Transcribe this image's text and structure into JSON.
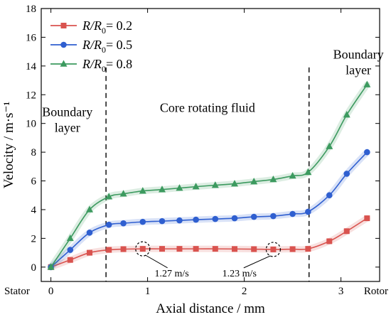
{
  "chart_data": {
    "type": "line",
    "xlabel": "Axial distance / mm",
    "ylabel": "Velocity / m·s⁻¹",
    "xlim": [
      -0.1,
      3.4
    ],
    "ylim": [
      -1,
      18
    ],
    "xticks": [
      0,
      1,
      2,
      3
    ],
    "yticks": [
      0,
      2,
      4,
      6,
      8,
      10,
      12,
      14,
      16,
      18
    ],
    "x_end_labels": {
      "left": "Stator",
      "right": "Rotor"
    },
    "legend_position": "top-left",
    "series": [
      {
        "name_parts": [
          "R/R",
          "0",
          "= 0.2"
        ],
        "color": "#d9534f",
        "marker": "square",
        "x": [
          0,
          0.2,
          0.4,
          0.6,
          0.75,
          0.95,
          1.15,
          1.33,
          1.5,
          1.7,
          1.9,
          2.1,
          2.3,
          2.5,
          2.66,
          2.88,
          3.06,
          3.27
        ],
        "y": [
          0,
          0.5,
          1.0,
          1.2,
          1.25,
          1.27,
          1.27,
          1.27,
          1.27,
          1.27,
          1.26,
          1.25,
          1.23,
          1.25,
          1.27,
          1.8,
          2.5,
          3.4
        ]
      },
      {
        "name_parts": [
          "R/R",
          "0",
          "= 0.5"
        ],
        "color": "#2f5fd0",
        "marker": "circle",
        "x": [
          0,
          0.2,
          0.4,
          0.6,
          0.75,
          0.95,
          1.15,
          1.33,
          1.5,
          1.7,
          1.9,
          2.1,
          2.3,
          2.5,
          2.66,
          2.88,
          3.06,
          3.27
        ],
        "y": [
          0,
          1.2,
          2.4,
          2.95,
          3.05,
          3.15,
          3.2,
          3.25,
          3.3,
          3.35,
          3.4,
          3.5,
          3.55,
          3.7,
          3.85,
          5.0,
          6.5,
          8.0
        ]
      },
      {
        "name_parts": [
          "R/R",
          "0",
          "= 0.8"
        ],
        "color": "#3c9a5f",
        "marker": "triangle",
        "x": [
          0,
          0.2,
          0.4,
          0.6,
          0.75,
          0.95,
          1.15,
          1.33,
          1.5,
          1.7,
          1.9,
          2.1,
          2.3,
          2.5,
          2.66,
          2.88,
          3.06,
          3.27
        ],
        "y": [
          0,
          2.0,
          4.0,
          4.9,
          5.1,
          5.3,
          5.4,
          5.5,
          5.6,
          5.7,
          5.8,
          5.95,
          6.1,
          6.35,
          6.6,
          8.4,
          10.6,
          12.7
        ]
      }
    ],
    "region_boundaries_x": [
      0.57,
      2.67
    ],
    "region_labels": [
      {
        "text": [
          "Boundary",
          "layer"
        ],
        "x": 0.17,
        "y": 10.5
      },
      {
        "text": [
          "Core rotating fluid"
        ],
        "x": 1.62,
        "y": 10.8
      },
      {
        "text": [
          "Boundary",
          "layer"
        ],
        "x": 3.18,
        "y": 14.5
      }
    ],
    "value_annotations": [
      {
        "text": "1.27 m/s",
        "x": 0.95,
        "y": 1.27,
        "label_x": 1.25,
        "label_y": -0.35
      },
      {
        "text": "1.23 m/s",
        "x": 2.3,
        "y": 1.23,
        "label_x": 1.95,
        "label_y": -0.35
      }
    ]
  }
}
